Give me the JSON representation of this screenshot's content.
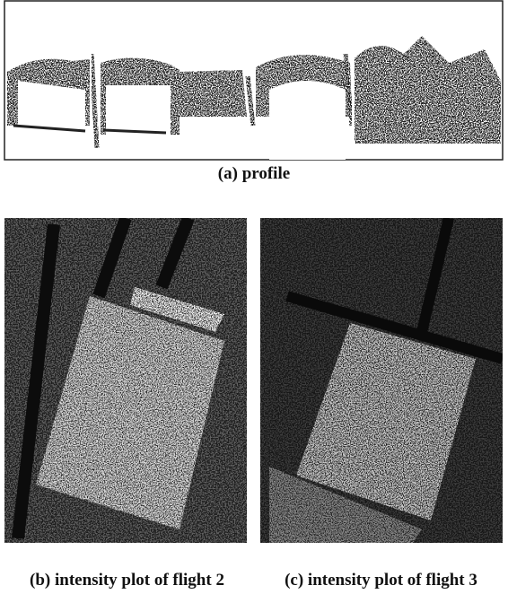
{
  "figure": {
    "captions": [
      "(a) profile",
      "(b) intensity plot of flight 2",
      "(c) intensity plot of flight 3"
    ]
  }
}
